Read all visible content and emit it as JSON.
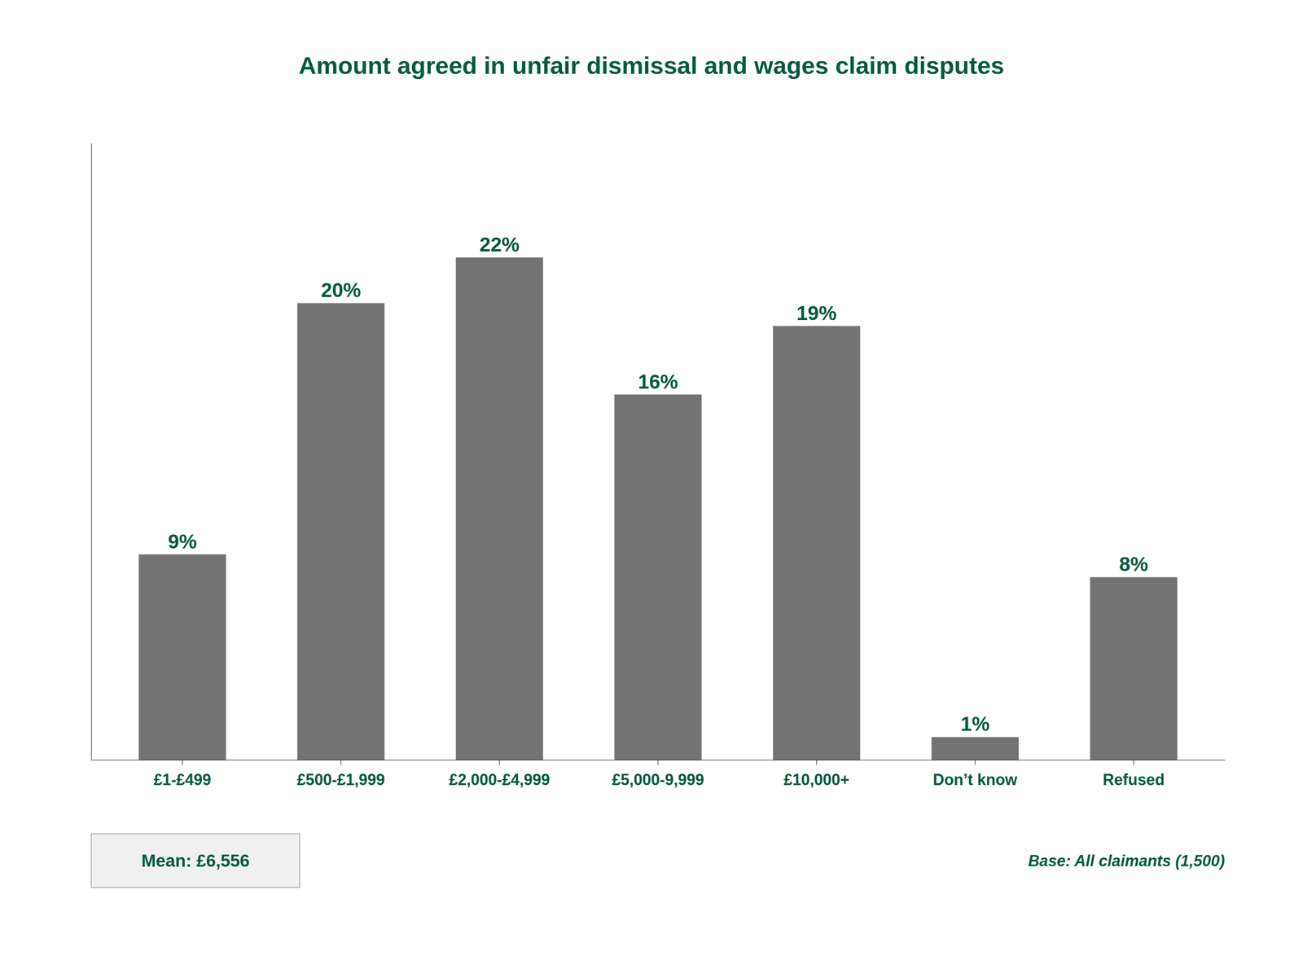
{
  "chart_data": {
    "type": "bar",
    "title": "Amount agreed in unfair dismissal and wages claim disputes",
    "categories": [
      "£1-£499",
      "£500-£1,999",
      "£2,000-£4,999",
      "£5,000-9,999",
      "£10,000+",
      "Don’t know",
      "Refused"
    ],
    "values": [
      9,
      20,
      22,
      16,
      19,
      1,
      8
    ],
    "value_labels": [
      "9%",
      "20%",
      "22%",
      "16%",
      "19%",
      "1%",
      "8%"
    ],
    "data_labels": true,
    "color": "#737373",
    "ylim": [
      0,
      27
    ],
    "tick_labels": "x",
    "grid": false,
    "annotations": [
      "Mean: £6,556",
      "Base: All claimants (1,500)"
    ]
  }
}
